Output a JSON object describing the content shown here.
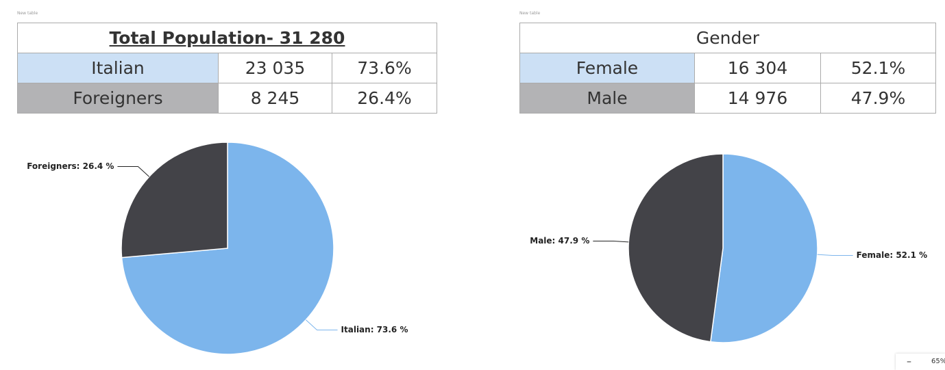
{
  "captions": [
    "New table",
    "New table"
  ],
  "tables": [
    {
      "title": "Total Population- 31 280",
      "rows": [
        [
          "Italian",
          "23 035",
          "73.6%"
        ],
        [
          "Foreigners",
          "8 245",
          "26.4%"
        ]
      ]
    },
    {
      "title": "Gender",
      "rows": [
        [
          "Female",
          "16 304",
          "52.1%"
        ],
        [
          "Male",
          "14 976",
          "47.9%"
        ]
      ]
    }
  ],
  "chart_data": [
    {
      "type": "pie",
      "categories": [
        "Italian",
        "Foreigners"
      ],
      "values": [
        73.6,
        26.4
      ],
      "value_labels": [
        "Italian: 73.6 %",
        "Foreigners: 26.4 %"
      ],
      "colors": [
        "#7cb5ec",
        "#434348"
      ]
    },
    {
      "type": "pie",
      "categories": [
        "Female",
        "Male"
      ],
      "values": [
        52.1,
        47.9
      ],
      "value_labels": [
        "Female: 52.1 %",
        "Male: 47.9 %"
      ],
      "colors": [
        "#7cb5ec",
        "#434348"
      ]
    }
  ],
  "zoom": "65%"
}
